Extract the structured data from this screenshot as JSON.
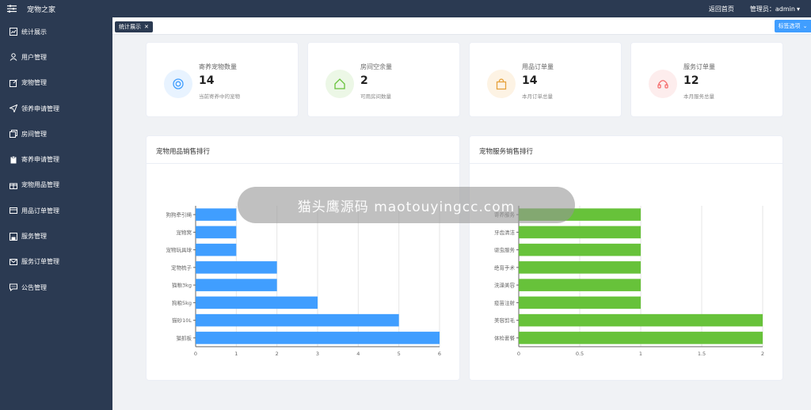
{
  "header": {
    "brand": "宠物之家",
    "home_link": "返回首页",
    "user_label": "管理员：admin"
  },
  "sidebar": {
    "items": [
      {
        "label": "统计展示",
        "icon": "chart-icon"
      },
      {
        "label": "用户管理",
        "icon": "user-icon"
      },
      {
        "label": "宠物管理",
        "icon": "edit-icon"
      },
      {
        "label": "领养申请管理",
        "icon": "send-icon"
      },
      {
        "label": "房间管理",
        "icon": "copy-icon"
      },
      {
        "label": "寄养申请管理",
        "icon": "clipboard-icon"
      },
      {
        "label": "宠物用品管理",
        "icon": "gift-icon"
      },
      {
        "label": "用品订单管理",
        "icon": "card-icon"
      },
      {
        "label": "服务管理",
        "icon": "save-icon"
      },
      {
        "label": "服务订单管理",
        "icon": "mail-icon"
      },
      {
        "label": "公告管理",
        "icon": "chat-icon"
      }
    ]
  },
  "tabs": {
    "active_label": "统计展示",
    "options_label": "标签选项"
  },
  "stats": [
    {
      "label": "寄养宠物数量",
      "value": "14",
      "sub": "当前寄养中的宠物",
      "icon": "pet-icon",
      "color": "#409eff",
      "bg": "#e8f3ff"
    },
    {
      "label": "房间空余量",
      "value": "2",
      "sub": "可用房间数量",
      "icon": "house-icon",
      "color": "#67c23a",
      "bg": "#ecf7e6"
    },
    {
      "label": "用品订单量",
      "value": "14",
      "sub": "本月订单总量",
      "icon": "bag-icon",
      "color": "#e6a23c",
      "bg": "#fdf3e4"
    },
    {
      "label": "服务订单量",
      "value": "12",
      "sub": "本月服务总量",
      "icon": "headset-icon",
      "color": "#f56c6c",
      "bg": "#fdeded"
    }
  ],
  "charts": {
    "products_title": "宠物用品销售排行",
    "services_title": "宠物服务销售排行"
  },
  "chart_data": [
    {
      "type": "bar",
      "orientation": "horizontal",
      "title": "宠物用品销售排行",
      "categories": [
        "狗狗牵引绳",
        "宠物窝",
        "宠物玩具球",
        "宠物梳子",
        "猫粮3kg",
        "狗粮5kg",
        "猫砂10L",
        "猫抓板"
      ],
      "values": [
        1,
        1,
        1,
        2,
        2,
        3,
        5,
        6
      ],
      "xlim": [
        0,
        6
      ],
      "xticks": [
        "0",
        "1",
        "2",
        "3",
        "4",
        "5",
        "6"
      ],
      "grid": true,
      "color": "#409eff"
    },
    {
      "type": "bar",
      "orientation": "horizontal",
      "title": "宠物服务销售排行",
      "categories": [
        "寄养服务",
        "牙齿清洁",
        "驱虫服务",
        "绝育手术",
        "洗澡美容",
        "疫苗注射",
        "美容剪毛",
        "体检套餐"
      ],
      "values": [
        1,
        1,
        1,
        1,
        1,
        1,
        2,
        2
      ],
      "xlim": [
        0,
        2
      ],
      "xticks": [
        "0",
        "0.5",
        "1",
        "1.5",
        "2"
      ],
      "grid": true,
      "color": "#67c23a"
    }
  ],
  "watermark": "猫头鹰源码 maotouyingcc.com"
}
